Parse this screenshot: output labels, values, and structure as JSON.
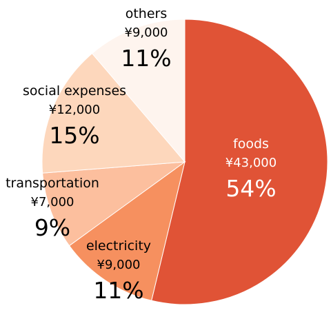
{
  "chart_data": {
    "type": "pie",
    "title": "",
    "legend": "none",
    "start_angle_deg": 0,
    "direction": "clockwise",
    "slices": [
      {
        "label": "foods",
        "amount": "¥43,000",
        "value": 43000,
        "percent": "54%",
        "color": "#e05336",
        "text_color": "#ffffff"
      },
      {
        "label": "electricity",
        "amount": "¥9,000",
        "value": 9000,
        "percent": "11%",
        "color": "#f6905f",
        "text_color": "#000000"
      },
      {
        "label": "transportation",
        "amount": "¥7,000",
        "value": 7000,
        "percent": "9%",
        "color": "#fcbf9e",
        "text_color": "#000000"
      },
      {
        "label": "social expenses",
        "amount": "¥12,000",
        "value": 12000,
        "percent": "15%",
        "color": "#fdd7bc",
        "text_color": "#000000"
      },
      {
        "label": "others",
        "amount": "¥9,000",
        "value": 9000,
        "percent": "11%",
        "color": "#fef4ee",
        "text_color": "#000000"
      }
    ]
  }
}
